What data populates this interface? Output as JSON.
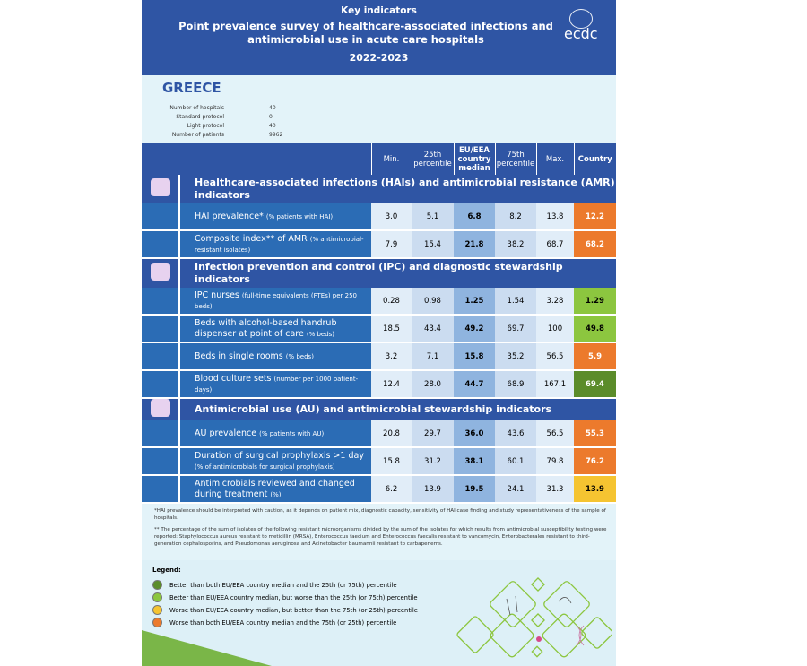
{
  "header": {
    "kicker": "Key indicators",
    "title": "Point prevalence survey of healthcare-associated infections and antimicrobial use in acute care hospitals",
    "years": "2022-2023",
    "logo_text": "ecdc"
  },
  "country": "GREECE",
  "info": [
    {
      "label": "Number of hospitals",
      "value": "40"
    },
    {
      "label": "Standard protocol",
      "value": "0"
    },
    {
      "label": "Light protocol",
      "value": "40"
    },
    {
      "label": "Number of patients",
      "value": "9962"
    }
  ],
  "columns": [
    "Min.",
    "25th percentile",
    "EU/EEA country median",
    "75th percentile",
    "Max.",
    "Country"
  ],
  "colors": {
    "dark_green": "#5b8c2a",
    "light_green": "#8cc63f",
    "yellow": "#f5c431",
    "orange": "#ec7a2c"
  },
  "sections": [
    {
      "title": "Healthcare-associated infections (HAIs) and antimicrobial resistance (AMR) indicators",
      "icon": "hai-icon",
      "rows": [
        {
          "label": "HAI prevalence*",
          "sub": "(% patients with HAI)",
          "vals": [
            "3.0",
            "5.1",
            "6.8",
            "8.2",
            "13.8"
          ],
          "country": "12.2",
          "status": "orange"
        },
        {
          "label": "Composite index** of AMR",
          "sub": "(% antimicrobial-resistant isolates)",
          "vals": [
            "7.9",
            "15.4",
            "21.8",
            "38.2",
            "68.7"
          ],
          "country": "68.2",
          "status": "orange"
        }
      ]
    },
    {
      "title": "Infection prevention and control (IPC) and diagnostic stewardship indicators",
      "icon": "handwash-icon",
      "rows": [
        {
          "label": "IPC nurses",
          "sub": "(full-time equivalents (FTEs) per 250 beds)",
          "vals": [
            "0.28",
            "0.98",
            "1.25",
            "1.54",
            "3.28"
          ],
          "country": "1.29",
          "status": "light_green"
        },
        {
          "label": "Beds with alcohol-based handrub dispenser at point of care",
          "sub": "(% beds)",
          "vals": [
            "18.5",
            "43.4",
            "49.2",
            "69.7",
            "100"
          ],
          "country": "49.8",
          "status": "light_green"
        },
        {
          "label": "Beds in single rooms",
          "sub": "(% beds)",
          "vals": [
            "3.2",
            "7.1",
            "15.8",
            "35.2",
            "56.5"
          ],
          "country": "5.9",
          "status": "orange"
        },
        {
          "label": "Blood culture sets",
          "sub": "(number per 1000 patient-days)",
          "vals": [
            "12.4",
            "28.0",
            "44.7",
            "68.9",
            "167.1"
          ],
          "country": "69.4",
          "status": "dark_green"
        }
      ]
    },
    {
      "title": "Antimicrobial use (AU) and antimicrobial stewardship indicators",
      "icon": "pills-icon",
      "rows": [
        {
          "label": "AU prevalence",
          "sub": "(% patients with AU)",
          "vals": [
            "20.8",
            "29.7",
            "36.0",
            "43.6",
            "56.5"
          ],
          "country": "55.3",
          "status": "orange"
        },
        {
          "label": "Duration of surgical prophylaxis >1 day",
          "sub": "(% of antimicrobials for surgical prophylaxis)",
          "vals": [
            "15.8",
            "31.2",
            "38.1",
            "60.1",
            "79.8"
          ],
          "country": "76.2",
          "status": "orange"
        },
        {
          "label": "Antimicrobials reviewed and changed during treatment",
          "sub": "(%)",
          "vals": [
            "6.2",
            "13.9",
            "19.5",
            "24.1",
            "31.3"
          ],
          "country": "13.9",
          "status": "yellow"
        }
      ]
    }
  ],
  "notes": [
    "*HAI prevalence should be interpreted with caution, as it depends on patient mix, diagnostic capacity, sensitivity of HAI case finding and study representativeness of the sample of hospitals.",
    "** The percentage of the sum of isolates of the following resistant microorganisms divided by the sum of the isolates for which results from antimicrobial susceptibility testing were reported: Staphylococcus aureus resistant to meticillin (MRSA), Enterococcus faecium and Enterococcus faecalis resistant to vancomycin, Enterobacterales resistant to third-generation cephalosporins, and Pseudomonas aeruginosa and Acinetobacter baumannii resistant to carbapenems."
  ],
  "legend": {
    "title": "Legend:",
    "items": [
      {
        "text": "Better than both EU/EEA country median and the 25th (or 75th) percentile",
        "color": "#5b8c2a"
      },
      {
        "text": "Better than EU/EEA country median, but worse than the 25th (or 75th) percentile",
        "color": "#8cc63f"
      },
      {
        "text": "Worse than EU/EEA country median, but better than the 75th (or 25th) percentile",
        "color": "#f5c431"
      },
      {
        "text": "Worse than both EU/EEA country median and the 75th (or 25th) percentile",
        "color": "#ec7a2c"
      }
    ]
  }
}
